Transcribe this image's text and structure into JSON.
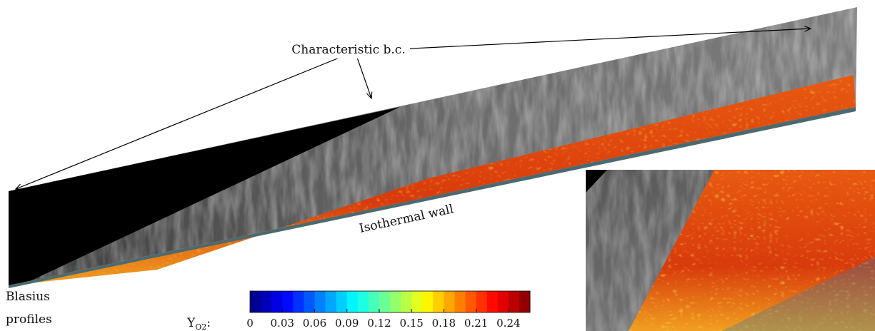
{
  "annotations": {
    "boundary": "Characteristic b.c.",
    "wall": "Isothermal wall",
    "inlet": [
      "Blasius",
      "profiles"
    ]
  },
  "colorbar": {
    "symbol": "Y",
    "subscript": "O2",
    "suffix": ":",
    "lim": [
      0,
      0.26
    ],
    "ticks": [
      0,
      0.03,
      0.06,
      0.09,
      0.12,
      0.15,
      0.18,
      0.21,
      0.24
    ]
  }
}
